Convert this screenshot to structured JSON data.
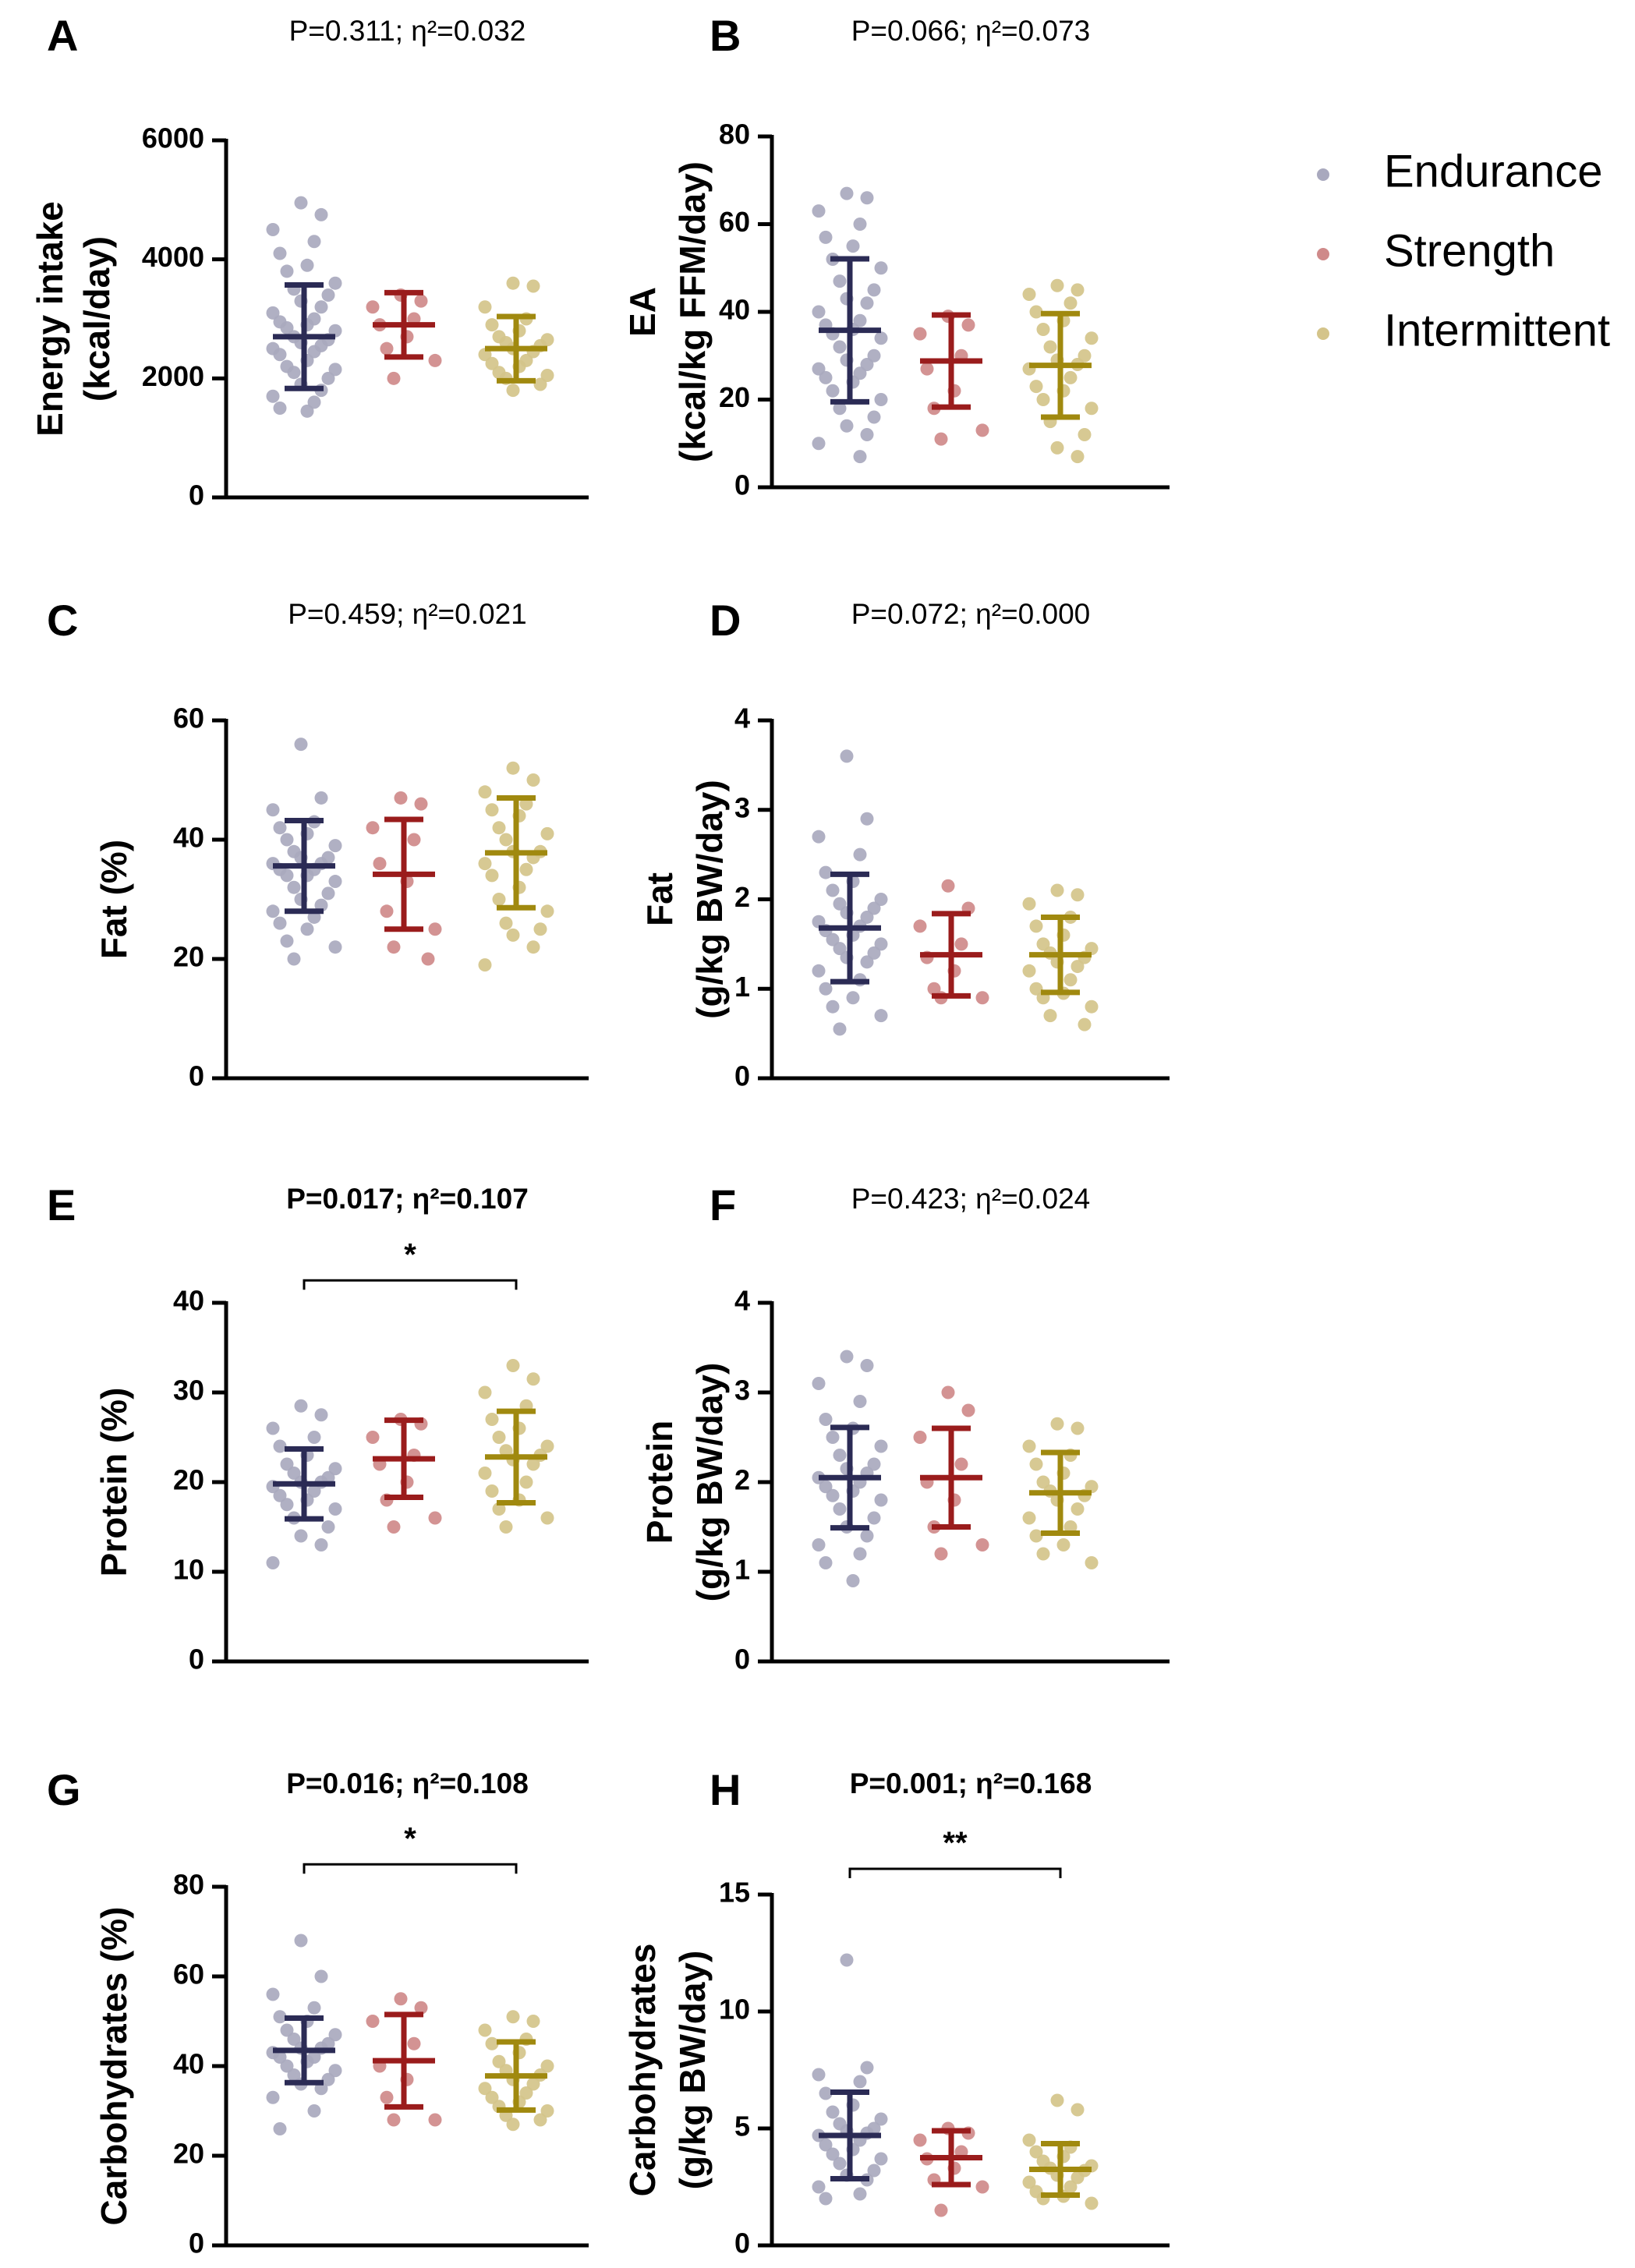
{
  "legend": [
    {
      "name": "Endurance",
      "color": "#a9a9be"
    },
    {
      "name": "Strength",
      "color": "#cf8a8a"
    },
    {
      "name": "Intermittent",
      "color": "#d4c48a"
    }
  ],
  "chart_data": [
    {
      "panel": "A",
      "type": "scatter",
      "stat": "P=0.311; η²=0.032",
      "stat_sig": false,
      "ylabel": [
        "Energy intake",
        "(kcal/day)"
      ],
      "ylim": [
        0,
        6000
      ],
      "yticks": [
        0,
        2000,
        4000,
        6000
      ],
      "categories": [
        "Endurance",
        "Strength",
        "Intermittent"
      ],
      "series": [
        {
          "name": "Endurance",
          "point_color": "#a9a9be",
          "bar_color": "#2b2b55",
          "mean": 2700,
          "sd": 870,
          "values": [
            4950,
            4750,
            4500,
            4300,
            4100,
            3900,
            3800,
            3600,
            3500,
            3400,
            3300,
            3200,
            3100,
            3000,
            2950,
            2900,
            2850,
            2800,
            2700,
            2650,
            2600,
            2550,
            2500,
            2450,
            2400,
            2300,
            2200,
            2150,
            2100,
            2000,
            1900,
            1800,
            1700,
            1600,
            1500,
            1450
          ]
        },
        {
          "name": "Strength",
          "point_color": "#cf8a8a",
          "bar_color": "#9a1c1c",
          "mean": 2900,
          "sd": 540,
          "values": [
            3400,
            3300,
            3200,
            3000,
            2900,
            2700,
            2500,
            2300,
            2000
          ]
        },
        {
          "name": "Intermittent",
          "point_color": "#d4c48a",
          "bar_color": "#a0890f",
          "mean": 2500,
          "sd": 540,
          "values": [
            3600,
            3550,
            3200,
            3000,
            2900,
            2800,
            2700,
            2650,
            2600,
            2550,
            2500,
            2450,
            2400,
            2300,
            2250,
            2200,
            2100,
            2050,
            2000,
            1900,
            1800
          ]
        }
      ],
      "bracket": null
    },
    {
      "panel": "B",
      "type": "scatter",
      "stat": "P=0.066; η²=0.073",
      "stat_sig": false,
      "ylabel": [
        "EA",
        "(kcal/kg FFM/day)"
      ],
      "ylim": [
        0,
        80
      ],
      "yticks": [
        0,
        20,
        40,
        60,
        80
      ],
      "categories": [
        "Endurance",
        "Strength",
        "Intermittent"
      ],
      "series": [
        {
          "name": "Endurance",
          "point_color": "#a9a9be",
          "bar_color": "#2b2b55",
          "mean": 35.8,
          "sd": 16.3,
          "values": [
            67,
            66,
            63,
            60,
            57,
            55,
            52,
            50,
            47,
            45,
            43,
            42,
            40,
            38,
            37,
            36,
            35,
            34,
            32,
            30,
            29,
            28,
            27,
            26,
            25,
            24,
            22,
            20,
            18,
            16,
            14,
            12,
            10,
            7
          ]
        },
        {
          "name": "Strength",
          "point_color": "#cf8a8a",
          "bar_color": "#9a1c1c",
          "mean": 28.8,
          "sd": 10.5,
          "values": [
            39,
            37,
            35,
            30,
            27,
            22,
            18,
            13,
            11
          ]
        },
        {
          "name": "Intermittent",
          "point_color": "#d4c48a",
          "bar_color": "#a0890f",
          "mean": 27.8,
          "sd": 11.8,
          "values": [
            46,
            45,
            44,
            42,
            40,
            38,
            36,
            34,
            32,
            30,
            29,
            28,
            27,
            25,
            23,
            22,
            20,
            18,
            15,
            12,
            9,
            7
          ]
        }
      ],
      "bracket": null
    },
    {
      "panel": "C",
      "type": "scatter",
      "stat": "P=0.459; η²=0.021",
      "stat_sig": false,
      "ylabel": [
        "Fat (%)"
      ],
      "ylim": [
        0,
        60
      ],
      "yticks": [
        0,
        20,
        40,
        60
      ],
      "categories": [
        "Endurance",
        "Strength",
        "Intermittent"
      ],
      "series": [
        {
          "name": "Endurance",
          "point_color": "#a9a9be",
          "bar_color": "#2b2b55",
          "mean": 35.6,
          "sd": 7.6,
          "values": [
            56,
            47,
            45,
            43,
            42,
            41,
            40,
            39,
            38,
            37,
            37,
            36,
            36,
            35,
            35,
            34,
            34,
            33,
            32,
            31,
            30,
            29,
            28,
            27,
            26,
            25,
            23,
            22,
            20
          ]
        },
        {
          "name": "Strength",
          "point_color": "#cf8a8a",
          "bar_color": "#9a1c1c",
          "mean": 34.2,
          "sd": 9.2,
          "values": [
            47,
            46,
            42,
            40,
            36,
            33,
            28,
            25,
            22,
            20
          ]
        },
        {
          "name": "Intermittent",
          "point_color": "#d4c48a",
          "bar_color": "#a0890f",
          "mean": 37.8,
          "sd": 9.2,
          "values": [
            52,
            50,
            48,
            46,
            45,
            44,
            42,
            41,
            40,
            38,
            38,
            37,
            36,
            35,
            34,
            32,
            30,
            28,
            26,
            25,
            24,
            22,
            19
          ]
        }
      ],
      "bracket": null
    },
    {
      "panel": "D",
      "type": "scatter",
      "stat": "P=0.072; η²=0.000",
      "stat_sig": false,
      "ylabel": [
        "Fat",
        "(g/kg BW/day)"
      ],
      "ylim": [
        0,
        4
      ],
      "yticks": [
        0,
        1,
        2,
        3,
        4
      ],
      "categories": [
        "Endurance",
        "Strength",
        "Intermittent"
      ],
      "series": [
        {
          "name": "Endurance",
          "point_color": "#a9a9be",
          "bar_color": "#2b2b55",
          "mean": 1.68,
          "sd": 0.6,
          "values": [
            3.6,
            2.9,
            2.7,
            2.5,
            2.3,
            2.2,
            2.1,
            2.0,
            1.95,
            1.9,
            1.85,
            1.8,
            1.75,
            1.7,
            1.65,
            1.6,
            1.55,
            1.5,
            1.45,
            1.4,
            1.35,
            1.3,
            1.2,
            1.1,
            1.0,
            0.9,
            0.8,
            0.7,
            0.55
          ]
        },
        {
          "name": "Strength",
          "point_color": "#cf8a8a",
          "bar_color": "#9a1c1c",
          "mean": 1.38,
          "sd": 0.46,
          "values": [
            2.15,
            1.9,
            1.7,
            1.5,
            1.35,
            1.2,
            1.0,
            0.9,
            0.9
          ]
        },
        {
          "name": "Intermittent",
          "point_color": "#d4c48a",
          "bar_color": "#a0890f",
          "mean": 1.38,
          "sd": 0.42,
          "values": [
            2.1,
            2.05,
            1.95,
            1.8,
            1.7,
            1.6,
            1.5,
            1.45,
            1.4,
            1.35,
            1.3,
            1.25,
            1.2,
            1.1,
            1.0,
            0.95,
            0.9,
            0.8,
            0.7,
            0.6
          ]
        }
      ],
      "bracket": null
    },
    {
      "panel": "E",
      "type": "scatter",
      "stat": "P=0.017; η²=0.107",
      "stat_sig": true,
      "ylabel": [
        "Protein (%)"
      ],
      "ylim": [
        0,
        40
      ],
      "yticks": [
        0,
        10,
        20,
        30,
        40
      ],
      "categories": [
        "Endurance",
        "Strength",
        "Intermittent"
      ],
      "series": [
        {
          "name": "Endurance",
          "point_color": "#a9a9be",
          "bar_color": "#2b2b55",
          "mean": 19.8,
          "sd": 3.9,
          "values": [
            28.5,
            27.5,
            26,
            25,
            24,
            23,
            22,
            21.5,
            21,
            20.5,
            20,
            20,
            19.5,
            19,
            18.5,
            18,
            17.5,
            17,
            16,
            15,
            14,
            13,
            11
          ]
        },
        {
          "name": "Strength",
          "point_color": "#cf8a8a",
          "bar_color": "#9a1c1c",
          "mean": 22.6,
          "sd": 4.3,
          "values": [
            27,
            26.5,
            25,
            23,
            22,
            20,
            18,
            16,
            15
          ]
        },
        {
          "name": "Intermittent",
          "point_color": "#d4c48a",
          "bar_color": "#a0890f",
          "mean": 22.8,
          "sd": 5.1,
          "values": [
            33,
            31.5,
            30,
            28.5,
            27,
            26,
            25,
            24,
            23.5,
            23,
            22.5,
            22,
            21,
            20,
            19,
            18,
            17,
            16,
            15
          ]
        }
      ],
      "bracket": {
        "from": 0,
        "to": 2,
        "y": 42.5,
        "label": "*"
      }
    },
    {
      "panel": "F",
      "type": "scatter",
      "stat": "P=0.423; η²=0.024",
      "stat_sig": false,
      "ylabel": [
        "Protein",
        "(g/kg BW/day)"
      ],
      "ylim": [
        0,
        4
      ],
      "yticks": [
        0,
        1,
        2,
        3,
        4
      ],
      "categories": [
        "Endurance",
        "Strength",
        "Intermittent"
      ],
      "series": [
        {
          "name": "Endurance",
          "point_color": "#a9a9be",
          "bar_color": "#2b2b55",
          "mean": 2.05,
          "sd": 0.56,
          "values": [
            3.4,
            3.3,
            3.1,
            2.9,
            2.7,
            2.6,
            2.5,
            2.4,
            2.3,
            2.2,
            2.15,
            2.1,
            2.05,
            2.0,
            1.95,
            1.9,
            1.85,
            1.8,
            1.7,
            1.6,
            1.5,
            1.4,
            1.3,
            1.2,
            1.1,
            0.9
          ]
        },
        {
          "name": "Strength",
          "point_color": "#cf8a8a",
          "bar_color": "#9a1c1c",
          "mean": 2.05,
          "sd": 0.55,
          "values": [
            3.0,
            2.8,
            2.5,
            2.2,
            2.0,
            1.8,
            1.5,
            1.3,
            1.2
          ]
        },
        {
          "name": "Intermittent",
          "point_color": "#d4c48a",
          "bar_color": "#a0890f",
          "mean": 1.88,
          "sd": 0.45,
          "values": [
            2.65,
            2.6,
            2.4,
            2.3,
            2.2,
            2.1,
            2.0,
            1.95,
            1.9,
            1.85,
            1.8,
            1.7,
            1.6,
            1.5,
            1.4,
            1.3,
            1.2,
            1.1
          ]
        }
      ],
      "bracket": null
    },
    {
      "panel": "G",
      "type": "scatter",
      "stat": "P=0.016; η²=0.108",
      "stat_sig": true,
      "ylabel": [
        "Carbohydrates (%)"
      ],
      "ylim": [
        0,
        80
      ],
      "yticks": [
        0,
        20,
        40,
        60,
        80
      ],
      "categories": [
        "Endurance",
        "Strength",
        "Intermittent"
      ],
      "series": [
        {
          "name": "Endurance",
          "point_color": "#a9a9be",
          "bar_color": "#2b2b55",
          "mean": 43.5,
          "sd": 7.2,
          "values": [
            68,
            60,
            56,
            53,
            51,
            50,
            48,
            47,
            46,
            45,
            44,
            44,
            43,
            42,
            42,
            41,
            40,
            39,
            38,
            37,
            36,
            35,
            33,
            30,
            26
          ]
        },
        {
          "name": "Strength",
          "point_color": "#cf8a8a",
          "bar_color": "#9a1c1c",
          "mean": 41.2,
          "sd": 10.3,
          "values": [
            55,
            53,
            50,
            45,
            40,
            37,
            33,
            28,
            28
          ]
        },
        {
          "name": "Intermittent",
          "point_color": "#d4c48a",
          "bar_color": "#a0890f",
          "mean": 37.8,
          "sd": 7.6,
          "values": [
            51,
            50,
            48,
            46,
            45,
            43,
            41,
            40,
            39,
            38,
            37,
            36,
            35,
            34,
            33,
            32,
            31,
            30,
            29,
            28,
            27
          ]
        }
      ],
      "bracket": {
        "from": 0,
        "to": 2,
        "y": 85,
        "label": "*"
      }
    },
    {
      "panel": "H",
      "type": "scatter",
      "stat": "P=0.001; η²=0.168",
      "stat_sig": true,
      "ylabel": [
        "Carbohydrates",
        "(g/kg BW/day)"
      ],
      "ylim": [
        0,
        15
      ],
      "yticks": [
        0,
        5,
        10,
        15
      ],
      "categories": [
        "Endurance",
        "Strength",
        "Intermittent"
      ],
      "series": [
        {
          "name": "Endurance",
          "point_color": "#a9a9be",
          "bar_color": "#2b2b55",
          "mean": 4.7,
          "sd": 1.85,
          "values": [
            12.2,
            7.6,
            7.3,
            7.0,
            6.5,
            6.0,
            5.7,
            5.4,
            5.2,
            5.0,
            4.9,
            4.8,
            4.7,
            4.5,
            4.3,
            4.1,
            3.9,
            3.7,
            3.5,
            3.2,
            3.0,
            2.8,
            2.5,
            2.2,
            2.0
          ]
        },
        {
          "name": "Strength",
          "point_color": "#cf8a8a",
          "bar_color": "#9a1c1c",
          "mean": 3.75,
          "sd": 1.15,
          "values": [
            5.0,
            4.8,
            4.5,
            4.0,
            3.7,
            3.3,
            2.8,
            2.5,
            1.5
          ]
        },
        {
          "name": "Intermittent",
          "point_color": "#d4c48a",
          "bar_color": "#a0890f",
          "mean": 3.25,
          "sd": 1.1,
          "values": [
            6.2,
            5.8,
            4.5,
            4.2,
            4.0,
            3.8,
            3.6,
            3.4,
            3.3,
            3.2,
            3.0,
            2.9,
            2.7,
            2.5,
            2.3,
            2.1,
            2.0,
            1.8
          ]
        }
      ],
      "bracket": {
        "from": 0,
        "to": 2,
        "y": 16.1,
        "label": "**"
      }
    }
  ]
}
